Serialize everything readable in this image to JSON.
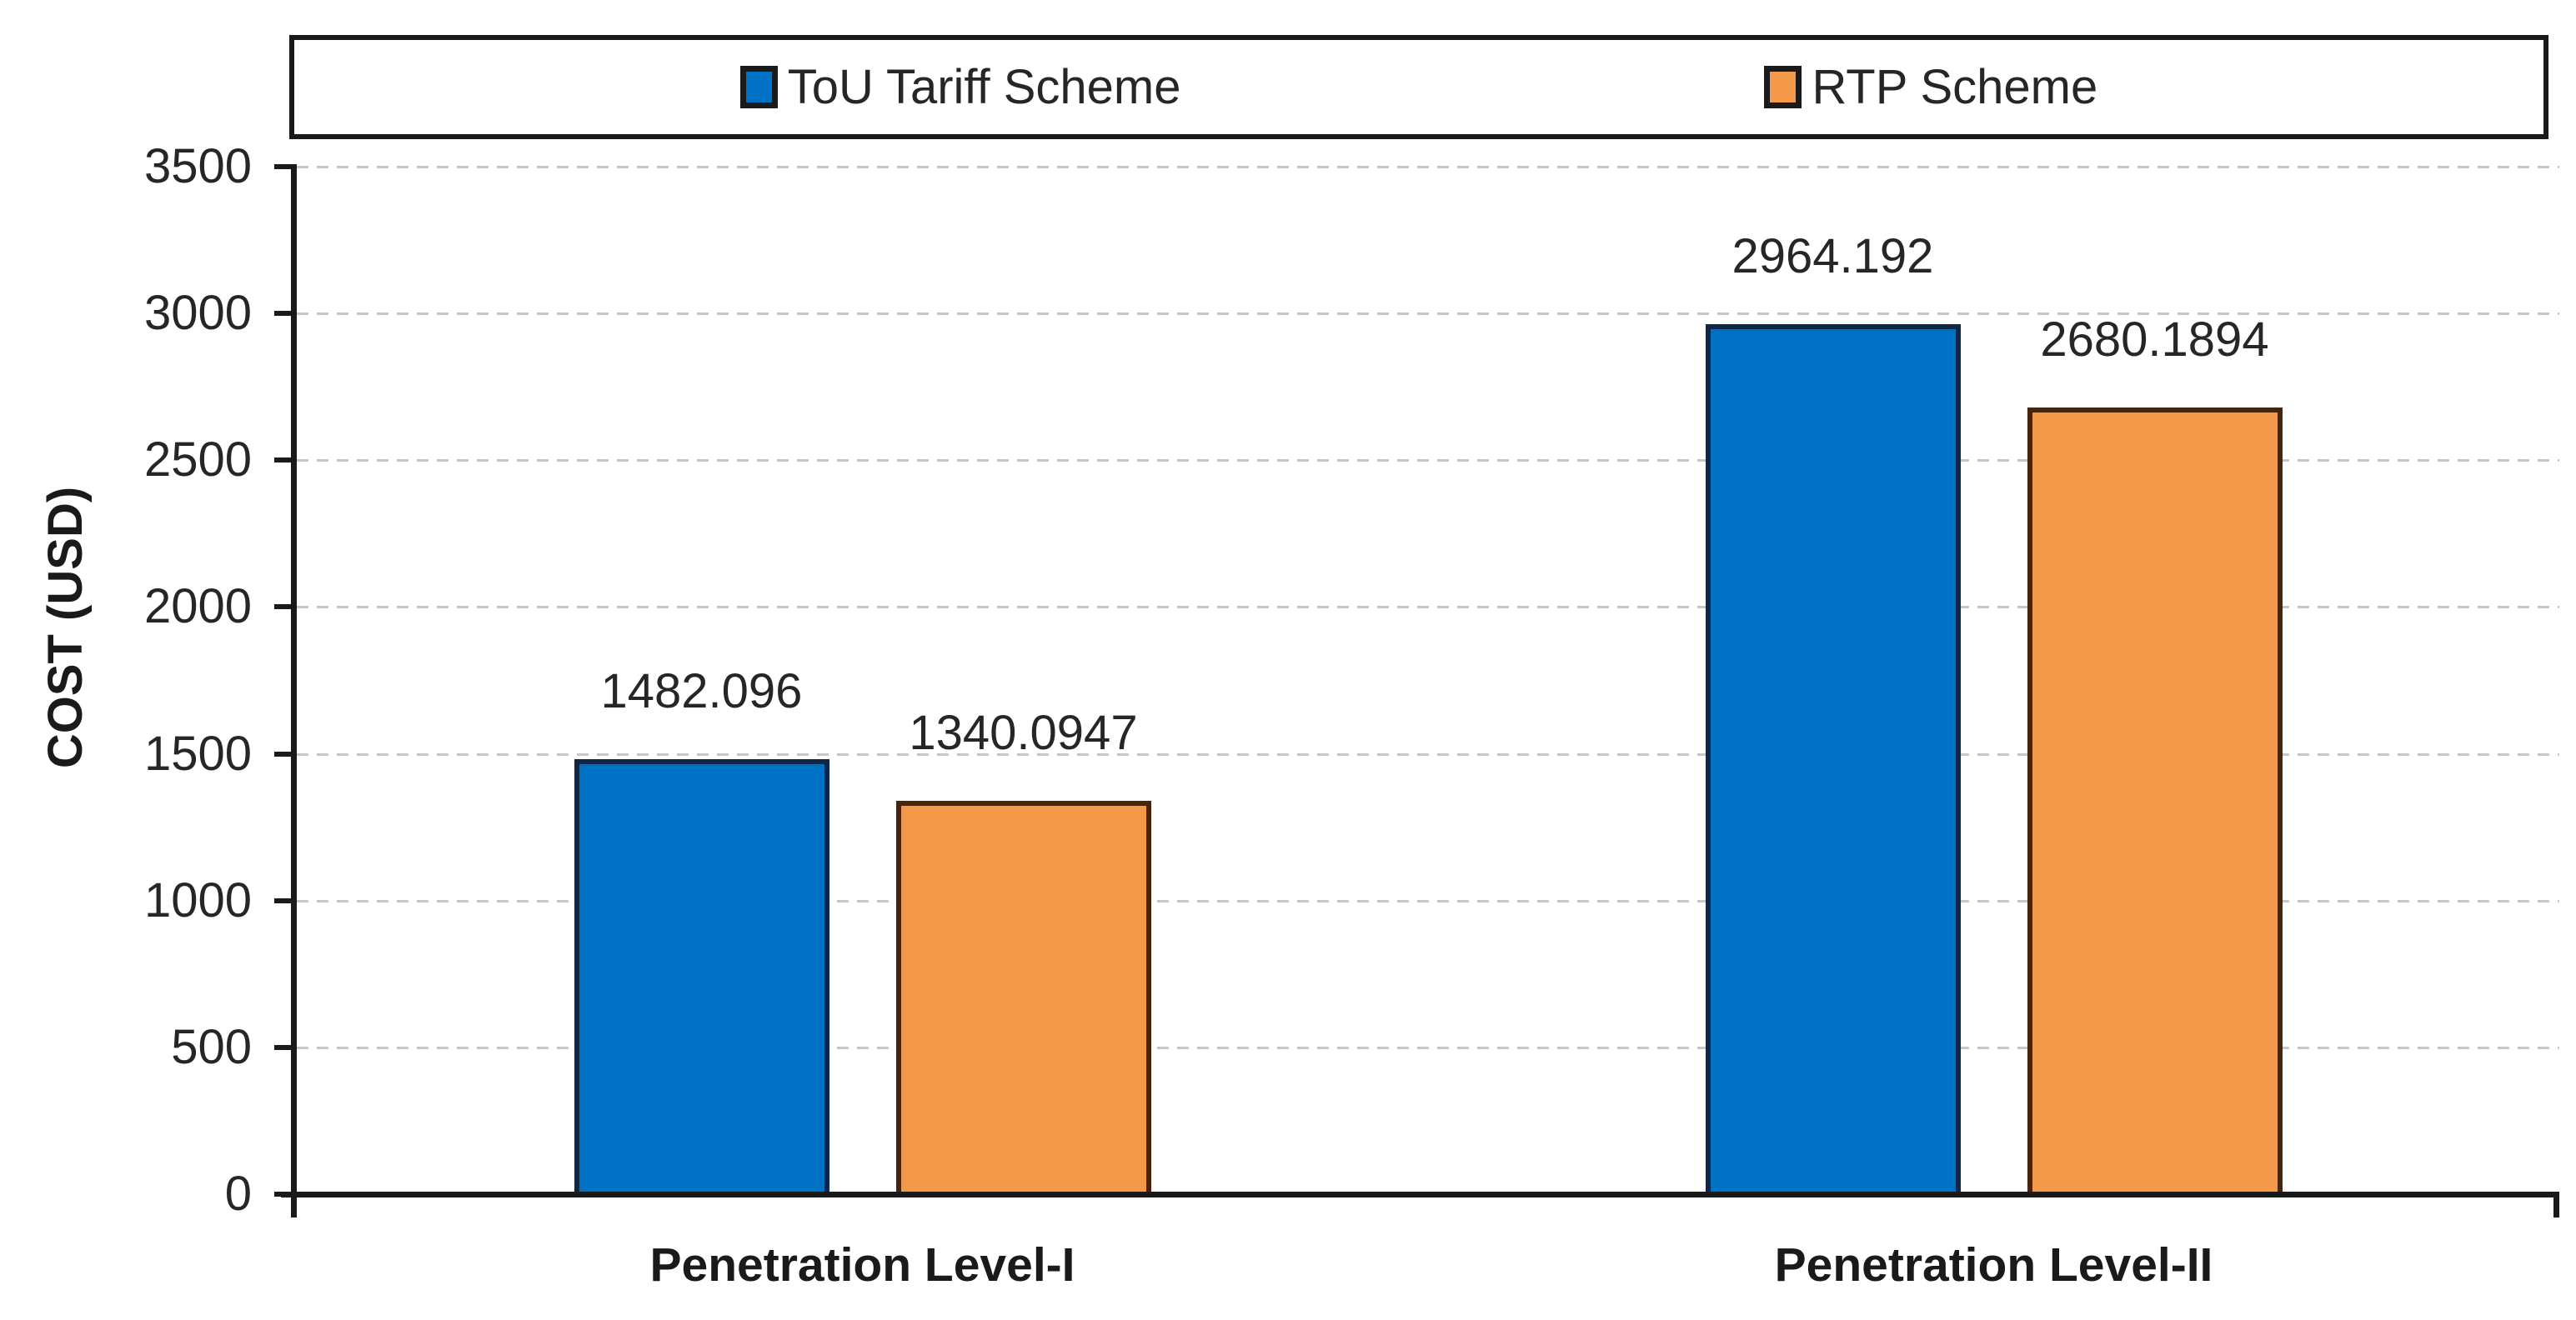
{
  "chart_data": {
    "type": "bar",
    "title": "",
    "categories": [
      "Penetration Level-I",
      "Penetration Level-II"
    ],
    "series": [
      {
        "name": "ToU Tariff Scheme",
        "fill": "#0072C6",
        "border": "#0f2747",
        "values": [
          1482.096,
          2964.192
        ],
        "value_labels": [
          "1482.096",
          "2964.192"
        ]
      },
      {
        "name": "RTP Scheme",
        "fill": "#F4994A",
        "border": "#4a2408",
        "values": [
          1340.0947,
          2680.1894
        ],
        "value_labels": [
          "1340.0947",
          "2680.1894"
        ]
      }
    ],
    "xlabel": "",
    "ylabel": "COST (USD)",
    "ylim": [
      0,
      3500
    ],
    "yticks": [
      0,
      500,
      1000,
      1500,
      2000,
      2500,
      3000,
      3500
    ],
    "grid": "horizontal-dashed",
    "legend_position": "top-boxed"
  },
  "style": {
    "axis_color": "#1a1a1a",
    "grid_color": "#c7c7c7",
    "text_color": "#262626",
    "background": "#ffffff"
  }
}
